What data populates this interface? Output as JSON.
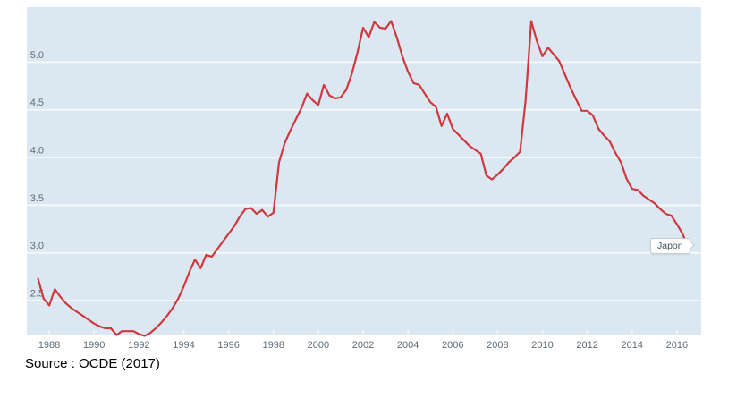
{
  "source": {
    "text": "Source : OCDE (2017)"
  },
  "tooltip": {
    "label": "Japon"
  },
  "colors": {
    "plot_background": "#dce8f1",
    "gridline": "#f3f8fb",
    "tick": "#eef4f8",
    "line": "#cf383e",
    "axis_text": "#5f6b75",
    "source_text": "#000000",
    "tooltip_bg": "#fdfdfd",
    "tooltip_border": "#c3cad0",
    "tooltip_text": "#4a555e"
  },
  "chart_data": {
    "type": "line",
    "title": "",
    "xlabel": "",
    "ylabel": "",
    "legend_position": "tooltip-at-line-end",
    "grid": "horizontal",
    "x_tick_labels": [
      "1988",
      "1990",
      "1992",
      "1994",
      "1996",
      "1998",
      "2000",
      "2002",
      "2004",
      "2006",
      "2008",
      "2010",
      "2012",
      "2014",
      "2016"
    ],
    "y_tick_labels": [
      "2.5",
      "3.0",
      "3.5",
      "4.0",
      "4.5",
      "5.0"
    ],
    "x_range": [
      1987.0,
      2017.08
    ],
    "y_range": [
      2.135,
      5.575
    ],
    "series": [
      {
        "name": "Japon",
        "color": "#cf383e",
        "x_start": 1987.5,
        "x_step": 0.25,
        "values": [
          2.73,
          2.52,
          2.45,
          2.62,
          2.54,
          2.47,
          2.42,
          2.38,
          2.34,
          2.3,
          2.26,
          2.23,
          2.21,
          2.21,
          2.14,
          2.18,
          2.18,
          2.18,
          2.15,
          2.13,
          2.16,
          2.21,
          2.27,
          2.34,
          2.42,
          2.52,
          2.65,
          2.8,
          2.93,
          2.84,
          2.98,
          2.96,
          3.04,
          3.12,
          3.2,
          3.28,
          3.38,
          3.46,
          3.47,
          3.41,
          3.45,
          3.38,
          3.42,
          3.95,
          4.15,
          4.28,
          4.4,
          4.52,
          4.67,
          4.6,
          4.55,
          4.76,
          4.65,
          4.62,
          4.63,
          4.71,
          4.88,
          5.1,
          5.36,
          5.26,
          5.42,
          5.36,
          5.35,
          5.43,
          5.26,
          5.06,
          4.9,
          4.78,
          4.76,
          4.67,
          4.58,
          4.53,
          4.33,
          4.46,
          4.3,
          4.24,
          4.18,
          4.12,
          4.08,
          4.04,
          3.81,
          3.77,
          3.82,
          3.88,
          3.95,
          4.0,
          4.06,
          4.6,
          5.43,
          5.22,
          5.06,
          5.15,
          5.08,
          5.01,
          4.87,
          4.73,
          4.61,
          4.49,
          4.49,
          4.44,
          4.3,
          4.23,
          4.17,
          4.05,
          3.95,
          3.78,
          3.67,
          3.66,
          3.6,
          3.56,
          3.52,
          3.46,
          3.41,
          3.39,
          3.3,
          3.2,
          3.05
        ]
      }
    ]
  }
}
